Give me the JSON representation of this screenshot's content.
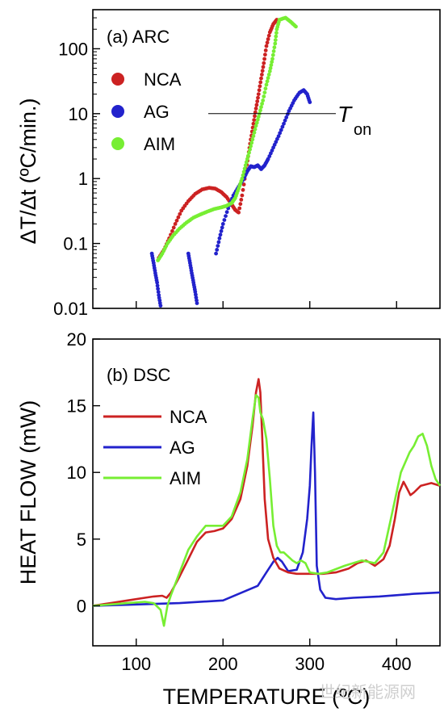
{
  "colors": {
    "NCA": "#cc2222",
    "AG": "#2222cc",
    "AIM": "#77ee33"
  },
  "watermark": "世纪新能源网",
  "chart_data": [
    {
      "type": "scatter",
      "panel_label": "(a) ARC",
      "ylabel": "ΔT/Δt (ºC/min.)",
      "yscale": "log",
      "ylim": [
        0.01,
        400
      ],
      "xlim": [
        50,
        450
      ],
      "y_ticks": [
        0.01,
        0.1,
        1,
        10,
        100
      ],
      "y_tick_labels": [
        "0.01",
        "0.1",
        "1",
        "10",
        "100"
      ],
      "legend_position": "top-left",
      "annotation": {
        "text": "T",
        "subscript": "on",
        "y": 10,
        "x_start": 183,
        "x_end": 330
      },
      "series": [
        {
          "name": "NCA",
          "color": "#cc2222",
          "points": [
            [
              126,
              0.06
            ],
            [
              132,
              0.08
            ],
            [
              138,
              0.12
            ],
            [
              145,
              0.2
            ],
            [
              152,
              0.32
            ],
            [
              160,
              0.45
            ],
            [
              168,
              0.58
            ],
            [
              176,
              0.68
            ],
            [
              184,
              0.72
            ],
            [
              191,
              0.7
            ],
            [
              198,
              0.62
            ],
            [
              204,
              0.52
            ],
            [
              210,
              0.4
            ],
            [
              214,
              0.33
            ],
            [
              218,
              0.3
            ],
            [
              222,
              0.55
            ],
            [
              226,
              1.2
            ],
            [
              229,
              2.2
            ],
            [
              232,
              4
            ],
            [
              235,
              7
            ],
            [
              238,
              12
            ],
            [
              241,
              20
            ],
            [
              244,
              35
            ],
            [
              247,
              60
            ],
            [
              250,
              110
            ],
            [
              254,
              180
            ],
            [
              258,
              240
            ],
            [
              262,
              280
            ]
          ]
        },
        {
          "name": "AG",
          "color": "#2222cc",
          "points": [
            [
              118,
              0.07
            ],
            [
              120,
              0.05
            ],
            [
              122,
              0.035
            ],
            [
              124,
              0.025
            ],
            [
              126,
              0.016
            ],
            [
              128,
              0.011
            ],
            [
              160,
              0.07
            ],
            [
              162,
              0.05
            ],
            [
              164,
              0.035
            ],
            [
              166,
              0.025
            ],
            [
              168,
              0.018
            ],
            [
              170,
              0.012
            ],
            [
              192,
              0.07
            ],
            [
              196,
              0.12
            ],
            [
              200,
              0.2
            ],
            [
              206,
              0.35
            ],
            [
              212,
              0.55
            ],
            [
              218,
              0.75
            ],
            [
              224,
              1
            ],
            [
              228,
              1.3
            ],
            [
              232,
              1.55
            ],
            [
              236,
              1.5
            ],
            [
              240,
              1.6
            ],
            [
              244,
              1.4
            ],
            [
              248,
              1.6
            ],
            [
              252,
              2
            ],
            [
              258,
              3
            ],
            [
              264,
              4.5
            ],
            [
              270,
              7
            ],
            [
              276,
              11
            ],
            [
              282,
              16
            ],
            [
              288,
              21
            ],
            [
              293,
              23
            ],
            [
              297,
              20
            ],
            [
              300,
              15
            ]
          ]
        },
        {
          "name": "AIM",
          "color": "#77ee33",
          "points": [
            [
              125,
              0.055
            ],
            [
              130,
              0.07
            ],
            [
              136,
              0.1
            ],
            [
              142,
              0.13
            ],
            [
              150,
              0.17
            ],
            [
              158,
              0.21
            ],
            [
              166,
              0.25
            ],
            [
              174,
              0.28
            ],
            [
              182,
              0.31
            ],
            [
              190,
              0.34
            ],
            [
              198,
              0.36
            ],
            [
              204,
              0.38
            ],
            [
              210,
              0.42
            ],
            [
              214,
              0.5
            ],
            [
              218,
              0.7
            ],
            [
              222,
              1
            ],
            [
              226,
              1.6
            ],
            [
              230,
              2.5
            ],
            [
              234,
              4
            ],
            [
              238,
              6.5
            ],
            [
              242,
              10
            ],
            [
              246,
              16
            ],
            [
              250,
              28
            ],
            [
              254,
              45
            ],
            [
              257,
              70
            ],
            [
              260,
              120
            ],
            [
              262,
              200
            ],
            [
              265,
              280
            ],
            [
              272,
              300
            ],
            [
              278,
              260
            ],
            [
              284,
              220
            ]
          ]
        }
      ]
    },
    {
      "type": "line",
      "panel_label": "(b) DSC",
      "ylabel": "HEAT FLOW (mW)",
      "xlabel": "TEMPERATURE (ºC)",
      "ylim": [
        -3,
        20
      ],
      "xlim": [
        50,
        450
      ],
      "x_ticks": [
        100,
        200,
        300,
        400
      ],
      "y_ticks": [
        0,
        5,
        10,
        15,
        20
      ],
      "legend_position": "middle-left",
      "series": [
        {
          "name": "NCA",
          "color": "#cc2222",
          "x": [
            50,
            70,
            90,
            110,
            120,
            130,
            135,
            140,
            150,
            160,
            170,
            180,
            190,
            200,
            210,
            220,
            228,
            234,
            238,
            241,
            243,
            245,
            248,
            252,
            258,
            265,
            275,
            285,
            295,
            305,
            315,
            330,
            345,
            355,
            365,
            375,
            385,
            392,
            398,
            403,
            408,
            412,
            416,
            420,
            428,
            440,
            450
          ],
          "y": [
            0,
            0.2,
            0.4,
            0.6,
            0.7,
            0.75,
            0.6,
            1,
            2.2,
            3.5,
            4.8,
            5.5,
            5.6,
            5.8,
            6.5,
            8,
            10.5,
            13.5,
            16,
            17,
            16,
            13,
            8,
            5,
            3.6,
            2.8,
            2.5,
            2.4,
            2.4,
            2.4,
            2.4,
            2.5,
            2.8,
            3.2,
            3.4,
            3,
            3.5,
            4.5,
            6.5,
            8.5,
            9.3,
            8.8,
            8.3,
            8.5,
            9,
            9.2,
            9
          ]
        },
        {
          "name": "AG",
          "color": "#2222cc",
          "x": [
            50,
            100,
            150,
            200,
            240,
            250,
            258,
            263,
            268,
            275,
            285,
            292,
            297,
            300,
            302,
            304,
            306,
            308,
            312,
            318,
            330,
            350,
            380,
            420,
            450
          ],
          "y": [
            0,
            0.1,
            0.2,
            0.4,
            1.5,
            2.5,
            3.3,
            3.6,
            3.3,
            2.6,
            2.7,
            4,
            6.5,
            9,
            12,
            14.5,
            10,
            3,
            1.2,
            0.6,
            0.5,
            0.6,
            0.7,
            0.9,
            1
          ]
        },
        {
          "name": "AIM",
          "color": "#77ee33",
          "x": [
            50,
            70,
            90,
            110,
            120,
            128,
            132,
            136,
            140,
            150,
            160,
            170,
            180,
            190,
            200,
            210,
            220,
            228,
            234,
            238,
            241,
            243,
            246,
            250,
            254,
            258,
            262,
            266,
            270,
            275,
            280,
            285,
            290,
            295,
            300,
            310,
            320,
            340,
            360,
            375,
            385,
            395,
            405,
            415,
            420,
            425,
            430,
            435,
            440,
            445,
            450
          ],
          "y": [
            0,
            0.1,
            0.2,
            0.3,
            0.2,
            -0.3,
            -1.5,
            0,
            0.8,
            2.5,
            4.2,
            5.2,
            6,
            6,
            6,
            6.7,
            8.5,
            11,
            14,
            15.8,
            15.6,
            14.5,
            14,
            12.5,
            9.5,
            6,
            4.5,
            4,
            4,
            3.7,
            3.4,
            3.2,
            3.4,
            3.2,
            2.5,
            2.4,
            2.5,
            3,
            3.4,
            3.2,
            4,
            7,
            10,
            11.5,
            12,
            12.7,
            12.9,
            12,
            10.5,
            9.5,
            9
          ]
        }
      ]
    }
  ]
}
